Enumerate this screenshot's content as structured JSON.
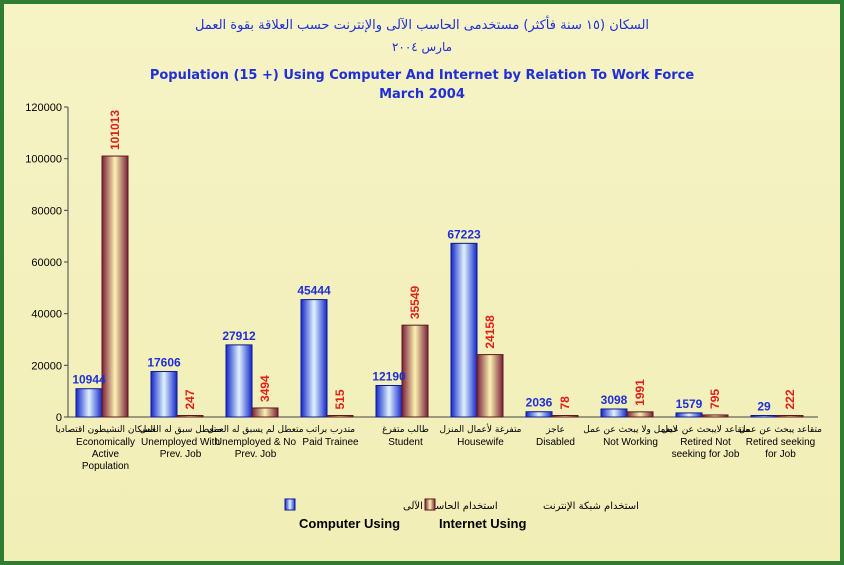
{
  "chart_data": {
    "type": "bar",
    "title_ar": "السكان (١٥ سنة فأكثر) مستخدمى الحاسب الآلى والإنترنت حسب العلاقة بقوة العمل",
    "subtitle_ar": "مارس ٢٠٠٤",
    "title": "Population (15 +) Using Computer And Internet by Relation To Work Force",
    "subtitle": "March 2004",
    "ylim": [
      0,
      120000
    ],
    "yticks": [
      "0",
      "20000",
      "40000",
      "60000",
      "80000",
      "100000",
      "120000"
    ],
    "grid": false,
    "legend_placement": "bottom",
    "categories": [
      {
        "ar": "السكان النشيطون اقتصاديا",
        "en": "Economically Active Population"
      },
      {
        "ar": "متعطل سبق له العمل",
        "en": "Unemployed With Prev. Job"
      },
      {
        "ar": "متعطل لم يسبق له العمل",
        "en": "Unemployed & No Prev. Job"
      },
      {
        "ar": "متدرب براتب",
        "en": "Paid Trainee"
      },
      {
        "ar": "طالب متفرغ",
        "en": "Student"
      },
      {
        "ar": "متفرغة لأعمال المنزل",
        "en": "Housewife"
      },
      {
        "ar": "عاجز",
        "en": "Disabled"
      },
      {
        "ar": "لايعمل ولا يبحث عن عمل",
        "en": "Not Working"
      },
      {
        "ar": "متقاعد لايبحث عن عمل",
        "en": "Retired Not seeking for Job"
      },
      {
        "ar": "متقاعد يبحث عن عمل",
        "en": "Retired seeking for Job"
      }
    ],
    "series": [
      {
        "name": "Computer Using",
        "name_ar": "استخدام الحاسب الآلى",
        "color": "#2438e8",
        "values": [
          10944,
          17606,
          27912,
          45444,
          12190,
          67223,
          2036,
          3098,
          1579,
          29
        ]
      },
      {
        "name": "Internet Using",
        "name_ar": "استخدام شبكة الإنترنت",
        "color": "#b8403a",
        "values": [
          101013,
          247,
          3494,
          515,
          35549,
          24158,
          78,
          1991,
          795,
          222
        ]
      }
    ]
  },
  "colors": {
    "frame": "#2e7d32",
    "title": "#1f2fd8",
    "computer_label": "#1f2fd8",
    "internet_label": "#e0201a"
  }
}
